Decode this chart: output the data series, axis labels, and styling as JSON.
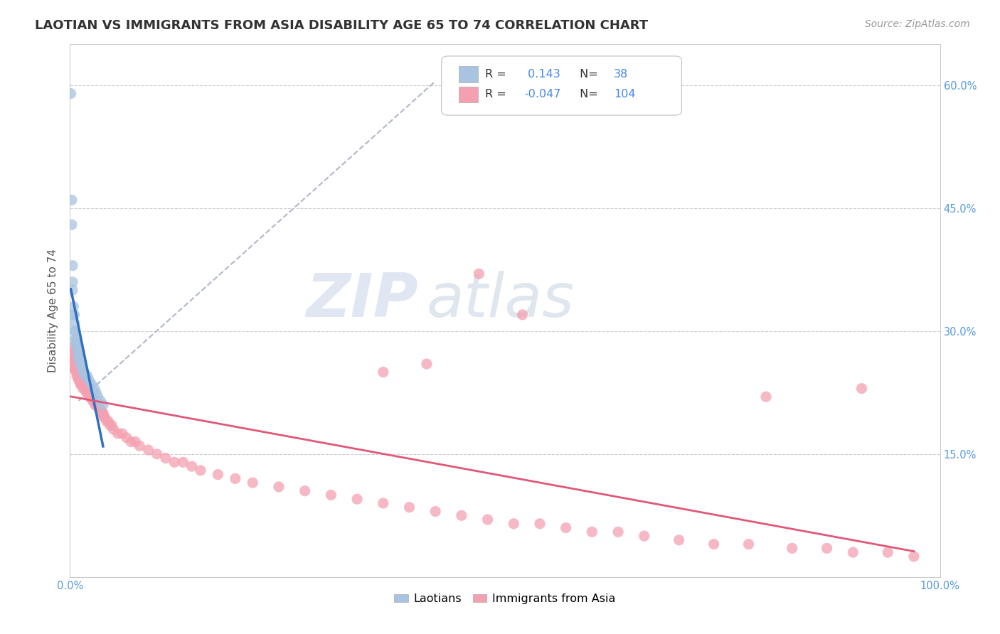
{
  "title": "LAOTIAN VS IMMIGRANTS FROM ASIA DISABILITY AGE 65 TO 74 CORRELATION CHART",
  "source": "Source: ZipAtlas.com",
  "ylabel": "Disability Age 65 to 74",
  "r_laotian": 0.143,
  "n_laotian": 38,
  "r_asian": -0.047,
  "n_asian": 104,
  "laotian_color": "#a8c4e0",
  "asian_color": "#f4a0b0",
  "laotian_line_color": "#3070c0",
  "asian_line_color": "#e05878",
  "background_color": "#ffffff",
  "watermark_zip": "ZIP",
  "watermark_atlas": "atlas",
  "laotian_x": [
    0.001,
    0.002,
    0.002,
    0.003,
    0.003,
    0.003,
    0.004,
    0.004,
    0.005,
    0.005,
    0.005,
    0.006,
    0.006,
    0.007,
    0.007,
    0.008,
    0.008,
    0.009,
    0.009,
    0.01,
    0.01,
    0.01,
    0.011,
    0.011,
    0.012,
    0.013,
    0.014,
    0.015,
    0.016,
    0.018,
    0.02,
    0.022,
    0.025,
    0.028,
    0.03,
    0.032,
    0.035,
    0.038
  ],
  "laotian_y": [
    0.59,
    0.46,
    0.43,
    0.38,
    0.36,
    0.35,
    0.33,
    0.32,
    0.32,
    0.31,
    0.3,
    0.3,
    0.29,
    0.29,
    0.285,
    0.285,
    0.28,
    0.28,
    0.275,
    0.275,
    0.27,
    0.27,
    0.265,
    0.265,
    0.26,
    0.26,
    0.255,
    0.25,
    0.25,
    0.245,
    0.245,
    0.24,
    0.235,
    0.23,
    0.225,
    0.22,
    0.215,
    0.21
  ],
  "asian_x": [
    0.001,
    0.001,
    0.002,
    0.002,
    0.003,
    0.003,
    0.004,
    0.004,
    0.005,
    0.005,
    0.006,
    0.006,
    0.007,
    0.007,
    0.008,
    0.008,
    0.009,
    0.009,
    0.01,
    0.01,
    0.011,
    0.011,
    0.012,
    0.012,
    0.013,
    0.013,
    0.014,
    0.015,
    0.015,
    0.016,
    0.017,
    0.018,
    0.019,
    0.02,
    0.021,
    0.022,
    0.023,
    0.024,
    0.025,
    0.026,
    0.027,
    0.028,
    0.029,
    0.03,
    0.031,
    0.032,
    0.033,
    0.034,
    0.035,
    0.036,
    0.037,
    0.038,
    0.039,
    0.04,
    0.042,
    0.044,
    0.046,
    0.048,
    0.05,
    0.055,
    0.06,
    0.065,
    0.07,
    0.075,
    0.08,
    0.09,
    0.1,
    0.11,
    0.12,
    0.13,
    0.14,
    0.15,
    0.17,
    0.19,
    0.21,
    0.24,
    0.27,
    0.3,
    0.33,
    0.36,
    0.39,
    0.42,
    0.45,
    0.48,
    0.51,
    0.54,
    0.57,
    0.6,
    0.63,
    0.66,
    0.7,
    0.74,
    0.78,
    0.83,
    0.87,
    0.9,
    0.94,
    0.97,
    0.47,
    0.52,
    0.36,
    0.41,
    0.8,
    0.91
  ],
  "asian_y": [
    0.28,
    0.26,
    0.275,
    0.265,
    0.27,
    0.255,
    0.27,
    0.26,
    0.265,
    0.255,
    0.265,
    0.255,
    0.26,
    0.25,
    0.255,
    0.245,
    0.25,
    0.245,
    0.25,
    0.24,
    0.245,
    0.24,
    0.245,
    0.235,
    0.24,
    0.235,
    0.24,
    0.235,
    0.23,
    0.235,
    0.23,
    0.23,
    0.225,
    0.225,
    0.225,
    0.22,
    0.22,
    0.22,
    0.22,
    0.215,
    0.215,
    0.215,
    0.21,
    0.21,
    0.21,
    0.21,
    0.205,
    0.205,
    0.205,
    0.2,
    0.2,
    0.2,
    0.195,
    0.195,
    0.19,
    0.19,
    0.185,
    0.185,
    0.18,
    0.175,
    0.175,
    0.17,
    0.165,
    0.165,
    0.16,
    0.155,
    0.15,
    0.145,
    0.14,
    0.14,
    0.135,
    0.13,
    0.125,
    0.12,
    0.115,
    0.11,
    0.105,
    0.1,
    0.095,
    0.09,
    0.085,
    0.08,
    0.075,
    0.07,
    0.065,
    0.065,
    0.06,
    0.055,
    0.055,
    0.05,
    0.045,
    0.04,
    0.04,
    0.035,
    0.035,
    0.03,
    0.03,
    0.025,
    0.37,
    0.32,
    0.25,
    0.26,
    0.22,
    0.23
  ],
  "xlim": [
    0.0,
    1.0
  ],
  "ylim": [
    0.0,
    0.65
  ],
  "ytick_positions": [
    0.15,
    0.3,
    0.45,
    0.6
  ],
  "ytick_labels": [
    "15.0%",
    "30.0%",
    "45.0%",
    "60.0%"
  ],
  "xtick_left_label": "0.0%",
  "xtick_right_label": "100.0%",
  "title_fontsize": 13,
  "axis_label_fontsize": 11,
  "tick_fontsize": 10.5,
  "source_fontsize": 10
}
